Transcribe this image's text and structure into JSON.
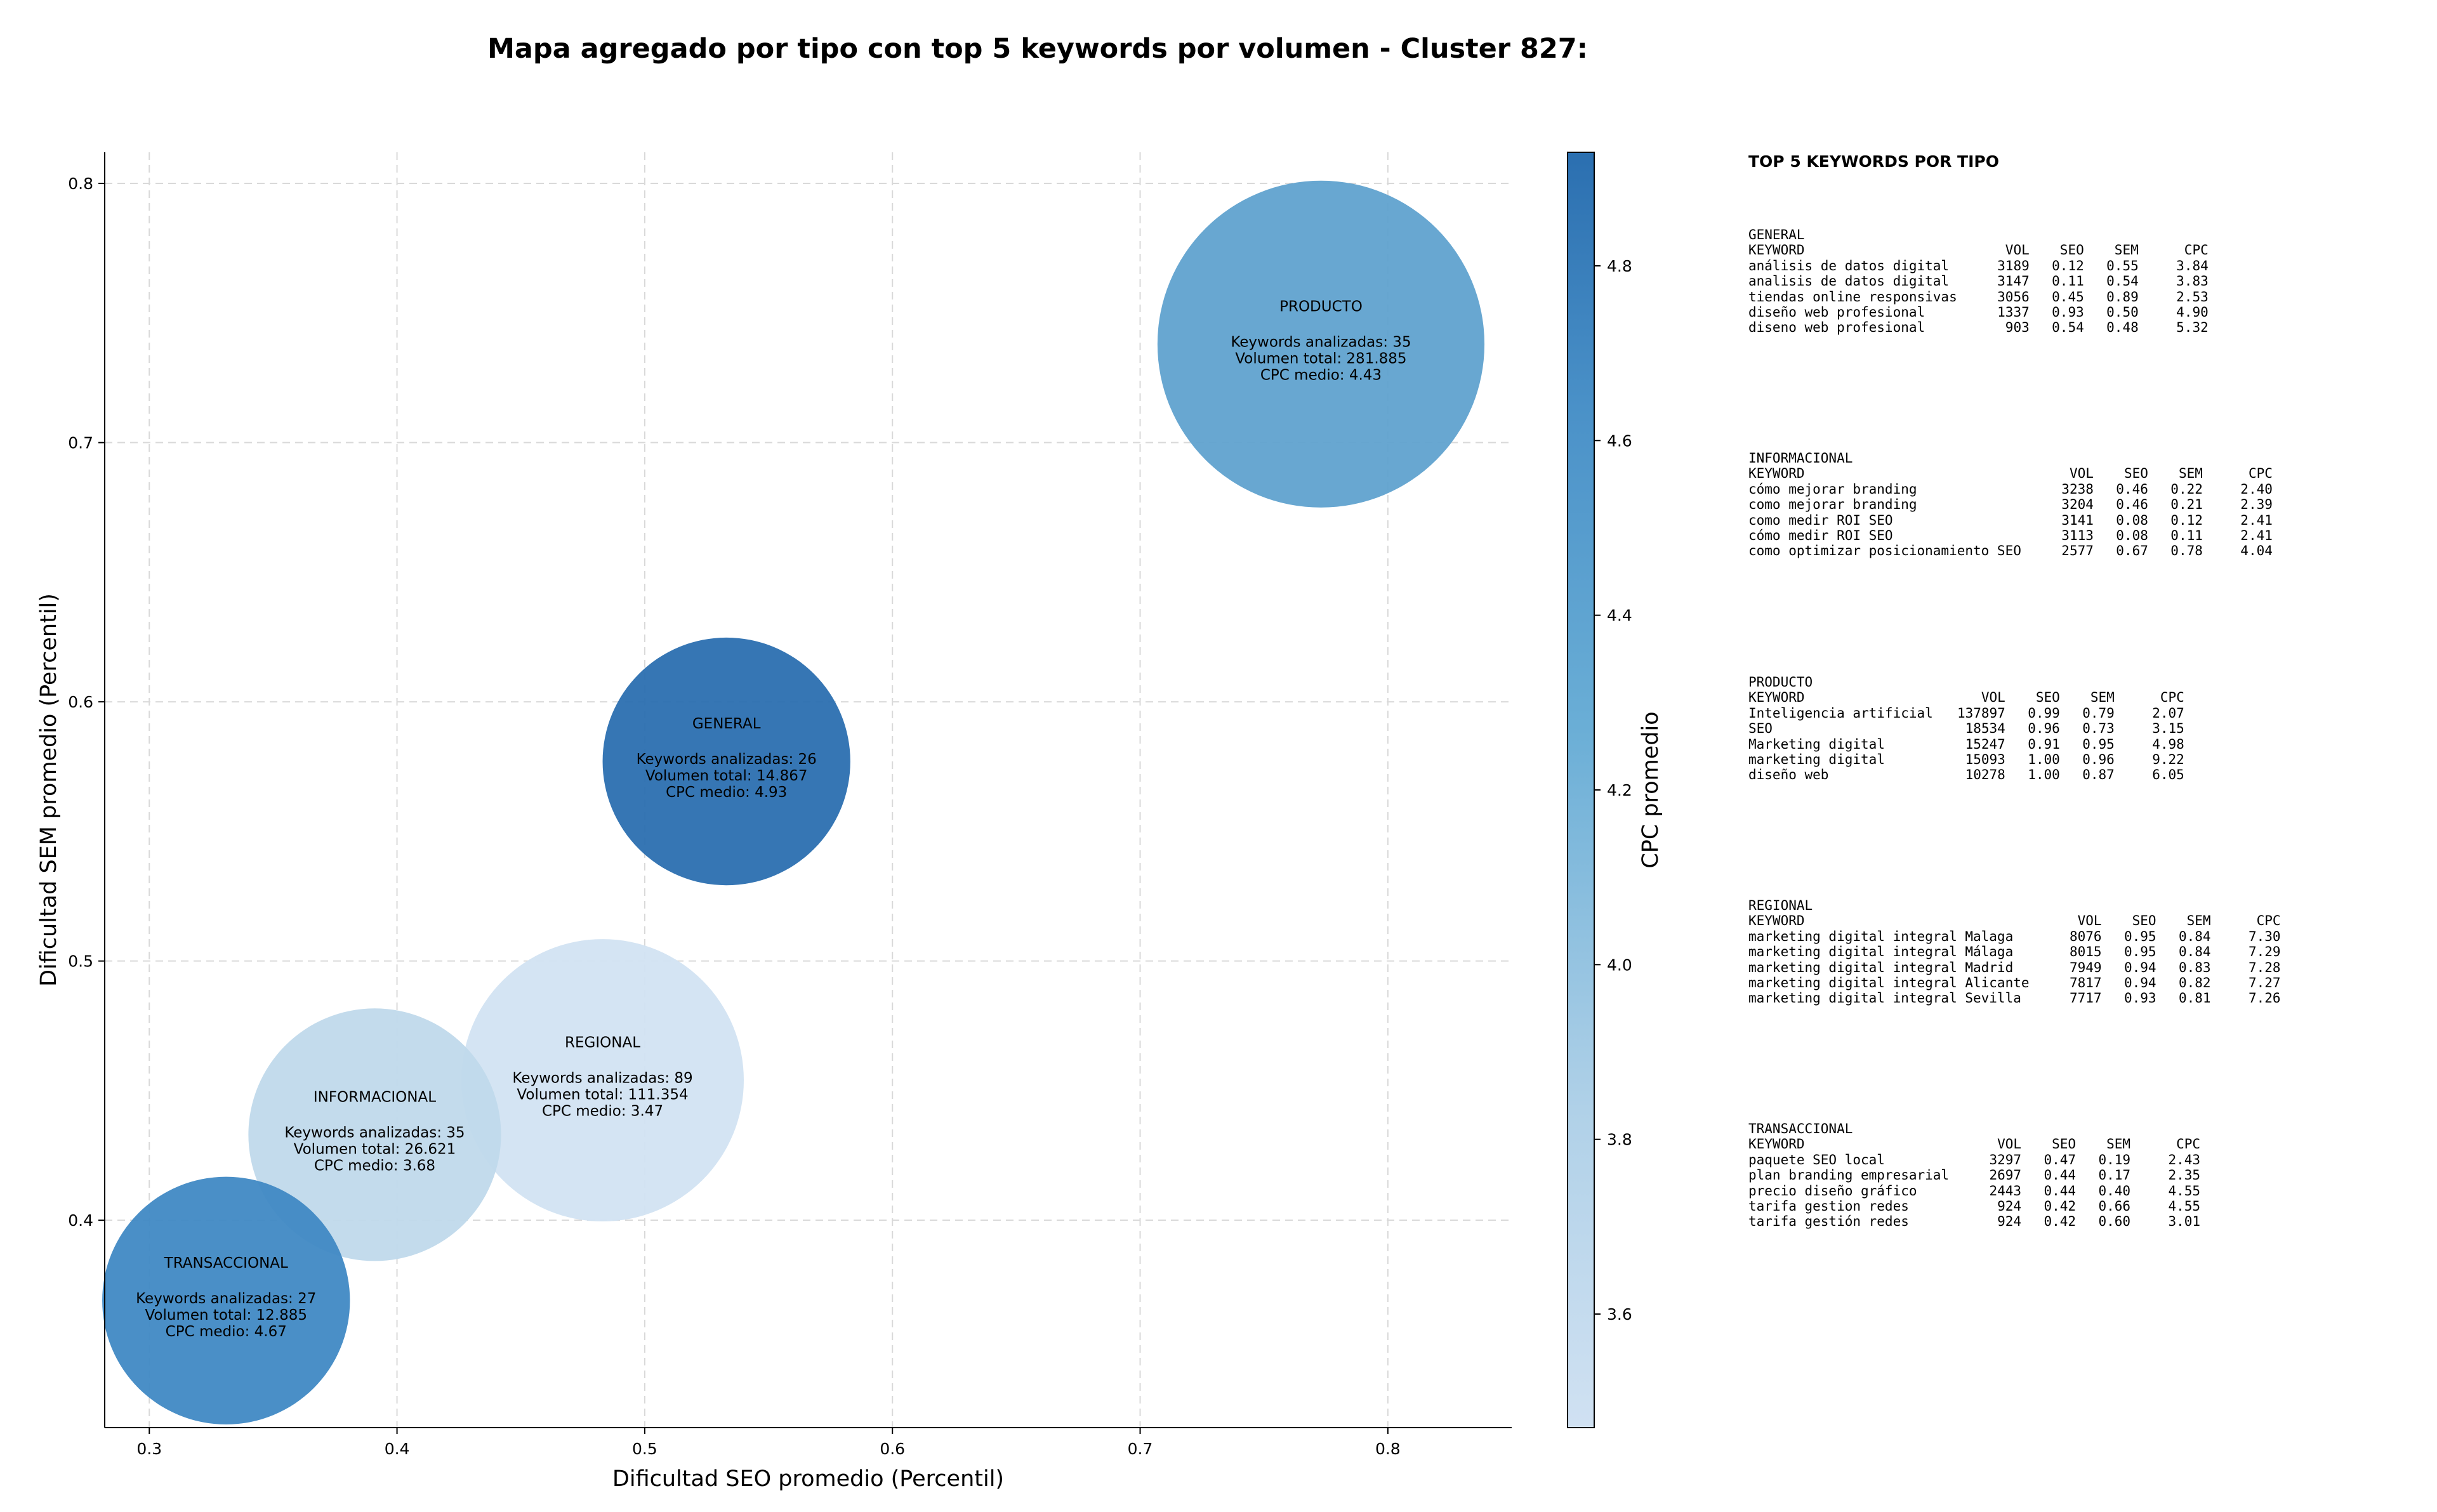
{
  "title": "Mapa agregado por tipo con top 5 keywords por volumen - Cluster 827:",
  "chart_data": {
    "type": "scatter",
    "title": "Mapa agregado por tipo con top 5 keywords por volumen - Cluster 827:",
    "xlabel": "Dificultad SEO promedio (Percentil)",
    "ylabel": "Dificultad SEM promedio (Percentil)",
    "xlim": [
      0.282,
      0.85
    ],
    "ylim": [
      0.32,
      0.812
    ],
    "xticks": [
      0.3,
      0.4,
      0.5,
      0.6,
      0.7,
      0.8
    ],
    "yticks": [
      0.4,
      0.5,
      0.6,
      0.7,
      0.8
    ],
    "xtick_labels": [
      "0.3",
      "0.4",
      "0.5",
      "0.6",
      "0.7",
      "0.8"
    ],
    "ytick_labels": [
      "0.4",
      "0.5",
      "0.6",
      "0.7",
      "0.8"
    ],
    "grid": true,
    "size_encoding": "Volumen total",
    "color_encoding": "CPC promedio",
    "colorbar": {
      "label": "CPC promedio",
      "range": [
        3.47,
        4.93
      ],
      "ticks": [
        3.6,
        3.8,
        4.0,
        4.2,
        4.4,
        4.6,
        4.8
      ],
      "tick_labels": [
        "3.6",
        "3.8",
        "4.0",
        "4.2",
        "4.4",
        "4.6",
        "4.8"
      ],
      "color_low": "#d0e1f2",
      "color_high": "#2b6fb0"
    },
    "points": [
      {
        "label": "PRODUCTO",
        "x": 0.773,
        "y": 0.738,
        "radius": 0.066,
        "cpc": 4.43,
        "color": "#60a2cf",
        "lines": [
          "Keywords analizadas: 35",
          "Volumen total: 281.885",
          "CPC medio: 4.43"
        ]
      },
      {
        "label": "GENERAL",
        "x": 0.533,
        "y": 0.577,
        "radius": 0.05,
        "cpc": 4.93,
        "color": "#2b6fb0",
        "lines": [
          "Keywords analizadas: 26",
          "Volumen total: 14.867",
          "CPC medio: 4.93"
        ]
      },
      {
        "label": "REGIONAL",
        "x": 0.483,
        "y": 0.454,
        "radius": 0.057,
        "cpc": 3.47,
        "color": "#d2e3f2",
        "lines": [
          "Keywords analizadas: 89",
          "Volumen total: 111.354",
          "CPC medio: 3.47"
        ]
      },
      {
        "label": "INFORMACIONAL",
        "x": 0.391,
        "y": 0.433,
        "radius": 0.051,
        "cpc": 3.68,
        "color": "#c0d9eb",
        "lines": [
          "Keywords analizadas: 35",
          "Volumen total: 26.621",
          "CPC medio: 3.68"
        ]
      },
      {
        "label": "TRANSACCIONAL",
        "x": 0.331,
        "y": 0.369,
        "radius": 0.05,
        "cpc": 4.67,
        "color": "#4089c4",
        "lines": [
          "Keywords analizadas: 27",
          "Volumen total: 12.885",
          "CPC medio: 4.67"
        ]
      }
    ]
  },
  "panel": {
    "title": "TOP 5 KEYWORDS POR TIPO",
    "columns": [
      "KEYWORD",
      "VOL",
      "SEO",
      "SEM",
      "CPC"
    ],
    "groups": [
      {
        "name": "GENERAL",
        "rows": [
          [
            "análisis de datos digital",
            "3189",
            "0.12",
            "0.55",
            "3.84"
          ],
          [
            "analisis de datos digital",
            "3147",
            "0.11",
            "0.54",
            "3.83"
          ],
          [
            "tiendas online responsivas",
            "3056",
            "0.45",
            "0.89",
            "2.53"
          ],
          [
            "diseño web profesional",
            "1337",
            "0.93",
            "0.50",
            "4.90"
          ],
          [
            "diseno web profesional",
            "903",
            "0.54",
            "0.48",
            "5.32"
          ]
        ]
      },
      {
        "name": "INFORMACIONAL",
        "rows": [
          [
            "cómo mejorar branding",
            "3238",
            "0.46",
            "0.22",
            "2.40"
          ],
          [
            "como mejorar branding",
            "3204",
            "0.46",
            "0.21",
            "2.39"
          ],
          [
            "como medir ROI SEO",
            "3141",
            "0.08",
            "0.12",
            "2.41"
          ],
          [
            "cómo medir ROI SEO",
            "3113",
            "0.08",
            "0.11",
            "2.41"
          ],
          [
            "como optimizar posicionamiento SEO",
            "2577",
            "0.67",
            "0.78",
            "4.04"
          ]
        ]
      },
      {
        "name": "PRODUCTO",
        "rows": [
          [
            "Inteligencia artificial",
            "137897",
            "0.99",
            "0.79",
            "2.07"
          ],
          [
            "SEO",
            "18534",
            "0.96",
            "0.73",
            "3.15"
          ],
          [
            "Marketing digital",
            "15247",
            "0.91",
            "0.95",
            "4.98"
          ],
          [
            "marketing digital",
            "15093",
            "1.00",
            "0.96",
            "9.22"
          ],
          [
            "diseño web",
            "10278",
            "1.00",
            "0.87",
            "6.05"
          ]
        ]
      },
      {
        "name": "REGIONAL",
        "rows": [
          [
            "marketing digital integral Malaga",
            "8076",
            "0.95",
            "0.84",
            "7.30"
          ],
          [
            "marketing digital integral Málaga",
            "8015",
            "0.95",
            "0.84",
            "7.29"
          ],
          [
            "marketing digital integral Madrid",
            "7949",
            "0.94",
            "0.83",
            "7.28"
          ],
          [
            "marketing digital integral Alicante",
            "7817",
            "0.94",
            "0.82",
            "7.27"
          ],
          [
            "marketing digital integral Sevilla",
            "7717",
            "0.93",
            "0.81",
            "7.26"
          ]
        ]
      },
      {
        "name": "TRANSACCIONAL",
        "rows": [
          [
            "paquete SEO local",
            "3297",
            "0.47",
            "0.19",
            "2.43"
          ],
          [
            "plan branding empresarial",
            "2697",
            "0.44",
            "0.17",
            "2.35"
          ],
          [
            "precio diseño gráfico",
            "2443",
            "0.44",
            "0.40",
            "4.55"
          ],
          [
            "tarifa gestion redes",
            "924",
            "0.42",
            "0.66",
            "4.55"
          ],
          [
            "tarifa gestión redes",
            "924",
            "0.42",
            "0.60",
            "3.01"
          ]
        ]
      }
    ]
  }
}
